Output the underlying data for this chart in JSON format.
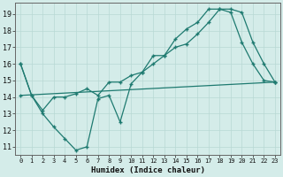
{
  "xlabel": "Humidex (Indice chaleur)",
  "bg_color": "#d4ece9",
  "line_color": "#1e7a70",
  "grid_color": "#b8d8d4",
  "xlim": [
    -0.5,
    23.5
  ],
  "ylim": [
    10.5,
    19.7
  ],
  "yticks": [
    11,
    12,
    13,
    14,
    15,
    16,
    17,
    18,
    19
  ],
  "xticks": [
    0,
    1,
    2,
    3,
    4,
    5,
    6,
    7,
    8,
    9,
    10,
    11,
    12,
    13,
    14,
    15,
    16,
    17,
    18,
    19,
    20,
    21,
    22,
    23
  ],
  "line1_x": [
    0,
    1,
    2,
    3,
    4,
    5,
    6,
    7,
    8,
    9,
    10,
    11,
    12,
    13,
    14,
    15,
    16,
    17,
    18,
    19,
    20,
    21,
    22,
    23
  ],
  "line1_y": [
    16.0,
    14.1,
    13.0,
    12.2,
    11.5,
    10.8,
    11.0,
    13.9,
    14.1,
    12.5,
    14.8,
    15.5,
    16.5,
    16.5,
    17.5,
    18.1,
    18.5,
    19.3,
    19.3,
    19.1,
    17.3,
    16.0,
    15.0,
    14.9
  ],
  "line2_x": [
    0,
    1,
    2,
    3,
    4,
    5,
    6,
    7,
    8,
    9,
    10,
    11,
    12,
    13,
    14,
    15,
    16,
    17,
    18,
    19,
    20,
    21,
    22,
    23
  ],
  "line2_y": [
    16.0,
    14.1,
    13.2,
    14.0,
    14.0,
    14.2,
    14.5,
    14.1,
    14.9,
    14.9,
    15.3,
    15.5,
    16.0,
    16.5,
    17.0,
    17.2,
    17.8,
    18.5,
    19.3,
    19.3,
    19.1,
    17.3,
    16.0,
    14.9
  ],
  "line3_x": [
    0,
    23
  ],
  "line3_y": [
    14.1,
    14.9
  ]
}
